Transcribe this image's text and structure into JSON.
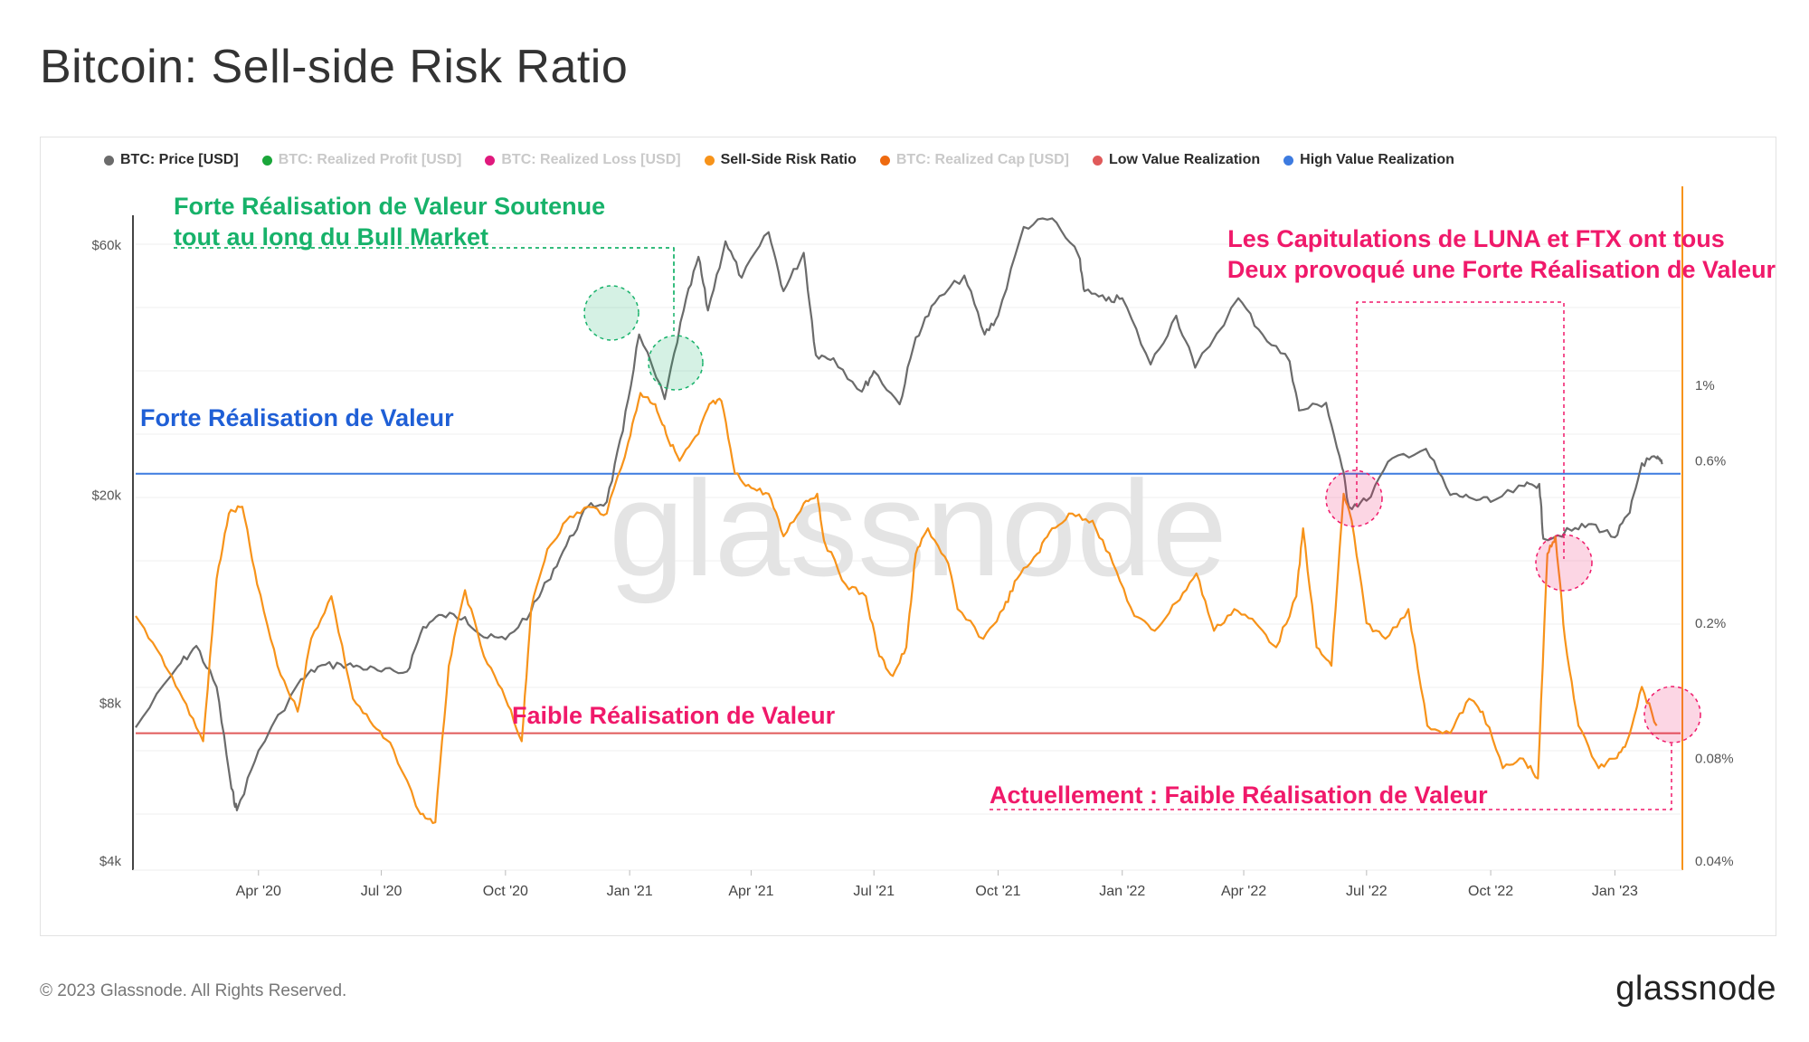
{
  "title": "Bitcoin: Sell-side Risk Ratio",
  "legend": [
    {
      "label": "BTC: Price [USD]",
      "color": "#6b6b6b",
      "active": true
    },
    {
      "label": "BTC: Realized Profit [USD]",
      "color": "#1aa63a",
      "active": false
    },
    {
      "label": "BTC: Realized Loss [USD]",
      "color": "#e0197d",
      "active": false
    },
    {
      "label": "Sell-Side Risk Ratio",
      "color": "#f7931a",
      "active": true
    },
    {
      "label": "BTC: Realized Cap [USD]",
      "color": "#ee6a10",
      "active": false
    },
    {
      "label": "Low Value Realization",
      "color": "#e05a5a",
      "active": true
    },
    {
      "label": "High Value Realization",
      "color": "#3d7be0",
      "active": true
    }
  ],
  "watermark": "glassnode",
  "footer": {
    "copyright": "© 2023 Glassnode. All Rights Reserved.",
    "brand": "glassnode"
  },
  "annotations": {
    "bull_market": [
      "Forte Réalisation de Valeur Soutenue",
      "tout au long du Bull Market"
    ],
    "capitulations": [
      "Les Capitulations de LUNA et FTX ont tous",
      "Deux provoqué une Forte Réalisation de Valeur"
    ],
    "high_line": "Forte Réalisation de Valeur",
    "low_line": "Faible Réalisation de Valeur",
    "current": "Actuellement : Faible Réalisation de Valeur",
    "colors": {
      "green": "#17b26a",
      "pink": "#f0196a",
      "blue": "#1f5fd6"
    }
  },
  "chart_data": {
    "type": "line",
    "x_ticks": [
      "Apr '20",
      "Jul '20",
      "Oct '20",
      "Jan '21",
      "Apr '21",
      "Jul '21",
      "Oct '21",
      "Jan '22",
      "Apr '22",
      "Jul '22",
      "Oct '22",
      "Jan '23"
    ],
    "y_left": {
      "label": "BTC: Price [USD]",
      "scale": "log",
      "ticks": [
        "$4k",
        "$8k",
        "$20k",
        "$60k"
      ],
      "tick_values": [
        4000,
        8000,
        20000,
        60000
      ]
    },
    "y_right": {
      "label": "Sell-Side Risk Ratio",
      "scale": "log",
      "ticks": [
        "0.04%",
        "0.08%",
        "0.2%",
        "0.6%",
        "1%"
      ],
      "tick_values": [
        0.04,
        0.08,
        0.2,
        0.6,
        1.0
      ]
    },
    "thresholds": {
      "high_value_realization": 0.55,
      "low_value_realization": 0.095
    },
    "series": [
      {
        "name": "BTC: Price [USD]",
        "color": "#6b6b6b",
        "points": [
          [
            "2020-01-01",
            7200
          ],
          [
            "2020-02-01",
            9400
          ],
          [
            "2020-02-15",
            10300
          ],
          [
            "2020-03-01",
            8600
          ],
          [
            "2020-03-12",
            5500
          ],
          [
            "2020-03-16",
            5000
          ],
          [
            "2020-04-01",
            6500
          ],
          [
            "2020-04-30",
            8700
          ],
          [
            "2020-05-15",
            9400
          ],
          [
            "2020-06-01",
            9500
          ],
          [
            "2020-06-15",
            9400
          ],
          [
            "2020-07-01",
            9200
          ],
          [
            "2020-07-20",
            9200
          ],
          [
            "2020-08-01",
            11200
          ],
          [
            "2020-08-15",
            11800
          ],
          [
            "2020-09-01",
            11700
          ],
          [
            "2020-09-15",
            10700
          ],
          [
            "2020-10-01",
            10600
          ],
          [
            "2020-10-20",
            12000
          ],
          [
            "2020-11-01",
            13700
          ],
          [
            "2020-11-15",
            16000
          ],
          [
            "2020-12-01",
            19000
          ],
          [
            "2020-12-15",
            19400
          ],
          [
            "2020-12-27",
            26500
          ],
          [
            "2021-01-08",
            40500
          ],
          [
            "2021-01-27",
            30500
          ],
          [
            "2021-02-10",
            45000
          ],
          [
            "2021-02-21",
            57000
          ],
          [
            "2021-02-28",
            45000
          ],
          [
            "2021-03-13",
            61000
          ],
          [
            "2021-03-25",
            52000
          ],
          [
            "2021-04-14",
            63500
          ],
          [
            "2021-04-25",
            49000
          ],
          [
            "2021-05-10",
            58000
          ],
          [
            "2021-05-19",
            37000
          ],
          [
            "2021-06-01",
            36500
          ],
          [
            "2021-06-22",
            31500
          ],
          [
            "2021-07-01",
            34500
          ],
          [
            "2021-07-20",
            29800
          ],
          [
            "2021-08-01",
            40000
          ],
          [
            "2021-08-15",
            46500
          ],
          [
            "2021-09-06",
            52500
          ],
          [
            "2021-09-21",
            40500
          ],
          [
            "2021-10-01",
            44000
          ],
          [
            "2021-10-20",
            65000
          ],
          [
            "2021-11-10",
            67500
          ],
          [
            "2021-11-30",
            57000
          ],
          [
            "2021-12-04",
            49000
          ],
          [
            "2021-12-20",
            47000
          ],
          [
            "2022-01-01",
            47500
          ],
          [
            "2022-01-22",
            35500
          ],
          [
            "2022-02-10",
            44000
          ],
          [
            "2022-02-24",
            35000
          ],
          [
            "2022-03-28",
            47500
          ],
          [
            "2022-04-15",
            40500
          ],
          [
            "2022-05-05",
            36000
          ],
          [
            "2022-05-12",
            29000
          ],
          [
            "2022-06-01",
            30000
          ],
          [
            "2022-06-13",
            22500
          ],
          [
            "2022-06-18",
            19000
          ],
          [
            "2022-07-01",
            19500
          ],
          [
            "2022-07-20",
            23500
          ],
          [
            "2022-08-14",
            24500
          ],
          [
            "2022-09-01",
            20000
          ],
          [
            "2022-09-15",
            19800
          ],
          [
            "2022-10-01",
            19400
          ],
          [
            "2022-10-26",
            20800
          ],
          [
            "2022-11-06",
            21000
          ],
          [
            "2022-11-09",
            16500
          ],
          [
            "2022-11-30",
            17100
          ],
          [
            "2022-12-15",
            17600
          ],
          [
            "2023-01-01",
            16600
          ],
          [
            "2023-01-12",
            18500
          ],
          [
            "2023-01-21",
            23000
          ],
          [
            "2023-02-01",
            23500
          ],
          [
            "2023-02-05",
            22900
          ]
        ]
      },
      {
        "name": "Sell-Side Risk Ratio",
        "color": "#f7931a",
        "points": [
          [
            "2020-01-01",
            0.21
          ],
          [
            "2020-01-20",
            0.16
          ],
          [
            "2020-02-05",
            0.12
          ],
          [
            "2020-02-20",
            0.09
          ],
          [
            "2020-03-01",
            0.27
          ],
          [
            "2020-03-10",
            0.42
          ],
          [
            "2020-03-20",
            0.44
          ],
          [
            "2020-03-31",
            0.26
          ],
          [
            "2020-04-15",
            0.15
          ],
          [
            "2020-04-30",
            0.11
          ],
          [
            "2020-05-10",
            0.18
          ],
          [
            "2020-05-25",
            0.24
          ],
          [
            "2020-06-10",
            0.12
          ],
          [
            "2020-06-25",
            0.1
          ],
          [
            "2020-07-10",
            0.085
          ],
          [
            "2020-07-30",
            0.055
          ],
          [
            "2020-08-10",
            0.052
          ],
          [
            "2020-08-20",
            0.15
          ],
          [
            "2020-09-01",
            0.25
          ],
          [
            "2020-09-15",
            0.16
          ],
          [
            "2020-10-01",
            0.12
          ],
          [
            "2020-10-13",
            0.09
          ],
          [
            "2020-10-20",
            0.22
          ],
          [
            "2020-11-01",
            0.33
          ],
          [
            "2020-11-15",
            0.4
          ],
          [
            "2020-12-01",
            0.44
          ],
          [
            "2020-12-15",
            0.42
          ],
          [
            "2020-12-31",
            0.68
          ],
          [
            "2021-01-09",
            0.95
          ],
          [
            "2021-01-20",
            0.88
          ],
          [
            "2021-01-28",
            0.72
          ],
          [
            "2021-02-07",
            0.6
          ],
          [
            "2021-02-21",
            0.72
          ],
          [
            "2021-03-01",
            0.88
          ],
          [
            "2021-03-10",
            0.9
          ],
          [
            "2021-03-20",
            0.55
          ],
          [
            "2021-04-01",
            0.5
          ],
          [
            "2021-04-14",
            0.48
          ],
          [
            "2021-04-25",
            0.36
          ],
          [
            "2021-05-10",
            0.45
          ],
          [
            "2021-05-20",
            0.48
          ],
          [
            "2021-05-25",
            0.35
          ],
          [
            "2021-06-10",
            0.26
          ],
          [
            "2021-06-25",
            0.24
          ],
          [
            "2021-07-05",
            0.16
          ],
          [
            "2021-07-15",
            0.14
          ],
          [
            "2021-07-25",
            0.17
          ],
          [
            "2021-08-01",
            0.32
          ],
          [
            "2021-08-10",
            0.38
          ],
          [
            "2021-08-25",
            0.3
          ],
          [
            "2021-09-01",
            0.22
          ],
          [
            "2021-09-20",
            0.18
          ],
          [
            "2021-10-05",
            0.22
          ],
          [
            "2021-10-15",
            0.27
          ],
          [
            "2021-10-30",
            0.32
          ],
          [
            "2021-11-10",
            0.38
          ],
          [
            "2021-11-25",
            0.42
          ],
          [
            "2021-12-10",
            0.4
          ],
          [
            "2021-12-25",
            0.3
          ],
          [
            "2022-01-10",
            0.21
          ],
          [
            "2022-01-25",
            0.19
          ],
          [
            "2022-02-10",
            0.23
          ],
          [
            "2022-02-25",
            0.28
          ],
          [
            "2022-03-10",
            0.19
          ],
          [
            "2022-03-25",
            0.22
          ],
          [
            "2022-04-10",
            0.2
          ],
          [
            "2022-04-25",
            0.17
          ],
          [
            "2022-05-10",
            0.24
          ],
          [
            "2022-05-15",
            0.38
          ],
          [
            "2022-05-25",
            0.17
          ],
          [
            "2022-06-05",
            0.15
          ],
          [
            "2022-06-14",
            0.48
          ],
          [
            "2022-06-20",
            0.4
          ],
          [
            "2022-07-01",
            0.2
          ],
          [
            "2022-07-15",
            0.18
          ],
          [
            "2022-08-01",
            0.22
          ],
          [
            "2022-08-15",
            0.1
          ],
          [
            "2022-09-01",
            0.095
          ],
          [
            "2022-09-15",
            0.12
          ],
          [
            "2022-09-25",
            0.11
          ],
          [
            "2022-10-10",
            0.075
          ],
          [
            "2022-10-25",
            0.08
          ],
          [
            "2022-11-05",
            0.07
          ],
          [
            "2022-11-12",
            0.32
          ],
          [
            "2022-11-18",
            0.36
          ],
          [
            "2022-11-25",
            0.18
          ],
          [
            "2022-12-05",
            0.1
          ],
          [
            "2022-12-20",
            0.075
          ],
          [
            "2023-01-01",
            0.08
          ],
          [
            "2023-01-10",
            0.09
          ],
          [
            "2023-01-21",
            0.13
          ],
          [
            "2023-02-01",
            0.1
          ]
        ]
      }
    ]
  }
}
